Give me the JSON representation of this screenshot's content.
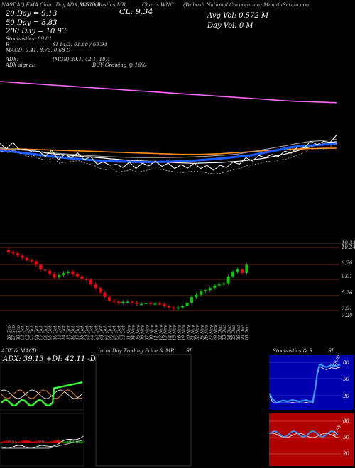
{
  "header": {
    "line1": "NASDAQ EMA Chart,Day,ADX,MACD,R",
    "stoch_label": "SI,Stochastics,MR",
    "cl": "CL: 9.34",
    "charts": "Charts WNC",
    "company": "(Wabash National Corporation) ManafaSatam.com",
    "ema20": "20 Day = 9.13",
    "ema50": "50 Day = 8.83",
    "ema200": "200 Day = 10.93",
    "stoch": "Stochastics: 89.01",
    "r": "R",
    "si": "SI 14/3: 61.68 / 69.94",
    "macd": "MACD: 9.41, 8.73, 0.68 D",
    "avg_vol": "Avg Vol: 0.572 M",
    "day_vol": "Day Vol: 0 M",
    "adx": "ADX:",
    "adx_vals": "(MGB) 39.1, 42.1, 18.4",
    "adx_signal": "ADX signal:",
    "buy": "BUY Growing @ 16%"
  },
  "price_axis": [
    "10.24",
    "9.76",
    "9.01",
    "8.26",
    "7.51",
    "7.20"
  ],
  "price_axis_top": [
    "10.34",
    "10.24"
  ],
  "dates": [
    "26 Sep",
    "27 Sep",
    "30 Sep",
    "01 Oct",
    "02 Oct",
    "03 Oct",
    "04 Oct",
    "07 Oct",
    "08 Oct",
    "09 Oct",
    "10 Oct",
    "11 Oct",
    "14 Oct",
    "15 Oct",
    "16 Oct",
    "17 Oct",
    "18 Oct",
    "21 Oct",
    "22 Oct",
    "23 Oct",
    "24 Oct",
    "25 Oct",
    "28 Oct",
    "29 Oct",
    "30 Oct",
    "31 Oct",
    "01 Nov",
    "04 Nov",
    "05 Nov",
    "06 Nov",
    "07 Nov",
    "08 Nov",
    "11 Nov",
    "12 Nov",
    "13 Nov",
    "14 Nov",
    "15 Nov",
    "18 Nov",
    "19 Nov",
    "20 Nov",
    "21 Nov",
    "22 Nov",
    "25 Nov",
    "26 Nov",
    "27 Nov",
    "29 Nov",
    "02 Dec",
    "03 Dec",
    "04 Dec",
    "05 Dec",
    "06 Dec",
    "09 Dec",
    "10 Dec"
  ],
  "panels": {
    "adx_title": "ADX & MACD",
    "adx_vals": "ADX: 39.13 +DI: 42.11 -DI: 18.42",
    "intra_title": "Intra Day Trading Price & MR",
    "intra_si": "SI",
    "stoch_title": "Stochastics & R",
    "stoch_si": "SI",
    "stoch_ticks": [
      "80",
      "50",
      "20"
    ],
    "stoch_value": "89.01",
    "si_ticks": [
      "80",
      "50",
      "20"
    ],
    "si_value": "61.68"
  },
  "colors": {
    "ema20": "#ffffff",
    "ema50": "#ff8c1a",
    "ema200": "#ff66ff",
    "ema_blue": "#1e5bff",
    "up": "#00cc00",
    "down": "#ff0000",
    "stoch_bg": "#0000b0",
    "si_bg": "#b00000"
  },
  "chart_data": {
    "type": "line",
    "series": [
      {
        "name": "20 Day",
        "values": [
          8.7,
          8.72,
          8.74,
          8.78,
          8.76,
          8.72,
          8.68,
          8.62,
          8.58,
          8.55,
          8.53,
          8.5,
          8.48,
          8.45,
          8.43,
          8.4,
          8.38,
          8.35,
          8.33,
          8.3,
          8.28,
          8.27,
          8.25,
          8.24,
          8.22,
          8.2,
          8.18,
          8.17,
          8.16,
          8.15,
          8.14,
          8.15,
          8.16,
          8.17,
          8.18,
          8.2,
          8.22,
          8.24,
          8.27,
          8.3,
          8.34,
          8.38,
          8.44,
          8.5,
          8.56,
          8.64,
          8.72,
          8.82,
          8.9,
          8.98,
          9.04,
          9.1,
          9.13
        ]
      },
      {
        "name": "50 Day",
        "values": [
          8.8,
          8.8,
          8.8,
          8.8,
          8.79,
          8.78,
          8.77,
          8.76,
          8.75,
          8.74,
          8.73,
          8.72,
          8.71,
          8.7,
          8.69,
          8.68,
          8.67,
          8.66,
          8.65,
          8.64,
          8.63,
          8.62,
          8.61,
          8.6,
          8.59,
          8.58,
          8.57,
          8.56,
          8.55,
          8.55,
          8.55,
          8.55,
          8.56,
          8.57,
          8.58,
          8.6,
          8.62,
          8.64,
          8.66,
          8.68,
          8.7,
          8.72,
          8.74,
          8.76,
          8.78,
          8.79,
          8.8,
          8.81,
          8.82,
          8.82,
          8.83,
          8.83,
          8.83
        ]
      },
      {
        "name": "200 Day",
        "values": [
          11.9,
          11.88,
          11.86,
          11.84,
          11.82,
          11.8,
          11.78,
          11.76,
          11.74,
          11.72,
          11.7,
          11.68,
          11.66,
          11.64,
          11.62,
          11.6,
          11.58,
          11.56,
          11.54,
          11.52,
          11.5,
          11.48,
          11.46,
          11.44,
          11.42,
          11.4,
          11.38,
          11.36,
          11.34,
          11.32,
          11.3,
          11.28,
          11.26,
          11.24,
          11.22,
          11.2,
          11.18,
          11.16,
          11.14,
          11.12,
          11.1,
          11.08,
          11.06,
          11.04,
          11.02,
          11.0,
          10.99,
          10.98,
          10.97,
          10.96,
          10.95,
          10.94,
          10.93
        ]
      }
    ]
  }
}
